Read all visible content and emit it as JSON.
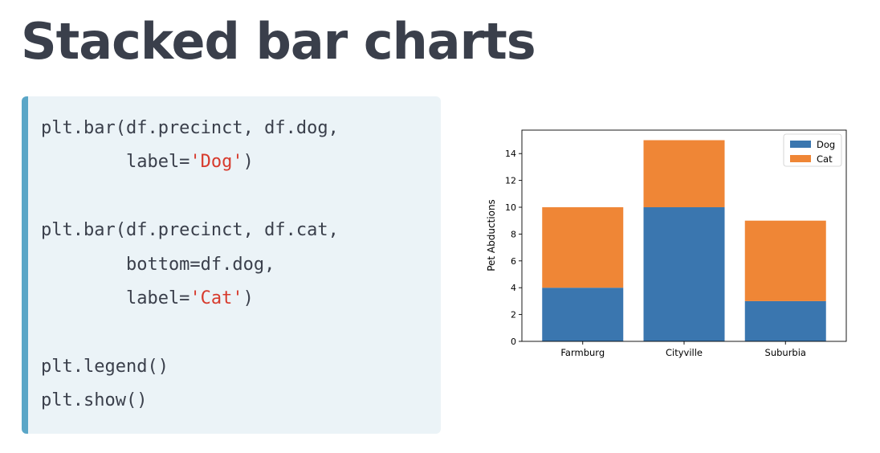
{
  "slide": {
    "title": "Stacked bar charts"
  },
  "code": {
    "lines": [
      [
        {
          "t": "plt.bar(df.precinct, df.dog,"
        }
      ],
      [
        {
          "t": "        label="
        },
        {
          "t": "'Dog'",
          "s": 1
        },
        {
          "t": ")"
        }
      ],
      [],
      [
        {
          "t": "plt.bar(df.precinct, df.cat,"
        }
      ],
      [
        {
          "t": "        bottom=df.dog,"
        }
      ],
      [
        {
          "t": "        label="
        },
        {
          "t": "'Cat'",
          "s": 1
        },
        {
          "t": ")"
        }
      ],
      [],
      [
        {
          "t": "plt.legend()"
        }
      ],
      [
        {
          "t": "plt.show()"
        }
      ]
    ]
  },
  "chart_data": {
    "type": "bar",
    "stacked": true,
    "categories": [
      "Farmburg",
      "Cityville",
      "Suburbia"
    ],
    "series": [
      {
        "name": "Dog",
        "values": [
          4,
          10,
          3
        ],
        "color": "#3a76af"
      },
      {
        "name": "Cat",
        "values": [
          6,
          5,
          6
        ],
        "color": "#ef8636"
      }
    ],
    "title": "",
    "xlabel": "",
    "ylabel": "Pet Abductions",
    "ylim": [
      0,
      15.75
    ],
    "yticks": [
      0,
      2,
      4,
      6,
      8,
      10,
      12,
      14
    ],
    "grid": false,
    "legend": "top-right"
  }
}
